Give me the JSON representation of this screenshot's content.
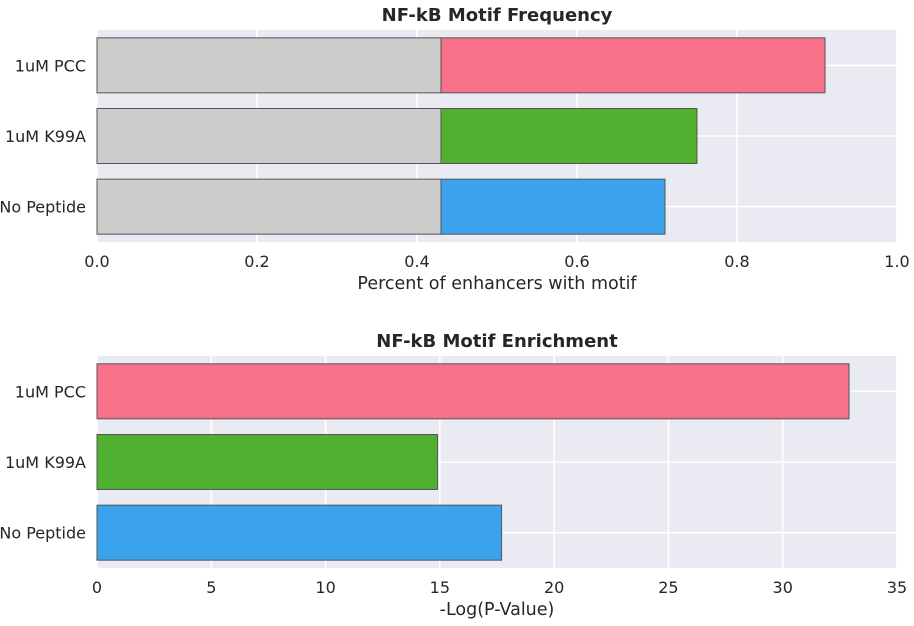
{
  "chart_data": [
    {
      "type": "bar",
      "orientation": "horizontal",
      "stacked": true,
      "title": "NF-kB Motif Frequency",
      "xlabel": "Percent of enhancers with motif",
      "ylabel": "",
      "xlim": [
        0,
        1
      ],
      "xticks": [
        "0.0",
        "0.2",
        "0.4",
        "0.6",
        "0.8",
        "1.0"
      ],
      "grid": true,
      "legend": false,
      "categories": [
        "1uM PCC",
        "1uM K99A",
        "No Peptide"
      ],
      "series": [
        {
          "values": [
            0.43,
            0.43,
            0.43
          ],
          "colors": [
            "#cccccc",
            "#cccccc",
            "#cccccc"
          ]
        },
        {
          "values": [
            0.48,
            0.32,
            0.28
          ],
          "colors": [
            "#f77189",
            "#50b131",
            "#3ba3ec"
          ]
        }
      ]
    },
    {
      "type": "bar",
      "orientation": "horizontal",
      "stacked": false,
      "title": "NF-kB Motif Enrichment",
      "xlabel": "-Log(P-Value)",
      "ylabel": "",
      "xlim": [
        0,
        35
      ],
      "xticks": [
        "0",
        "5",
        "10",
        "15",
        "20",
        "25",
        "30",
        "35"
      ],
      "grid": true,
      "legend": false,
      "categories": [
        "1uM PCC",
        "1uM K99A",
        "No Peptide"
      ],
      "series": [
        {
          "values": [
            32.9,
            14.9,
            17.7
          ],
          "colors": [
            "#f77189",
            "#50b131",
            "#3ba3ec"
          ]
        }
      ]
    }
  ]
}
